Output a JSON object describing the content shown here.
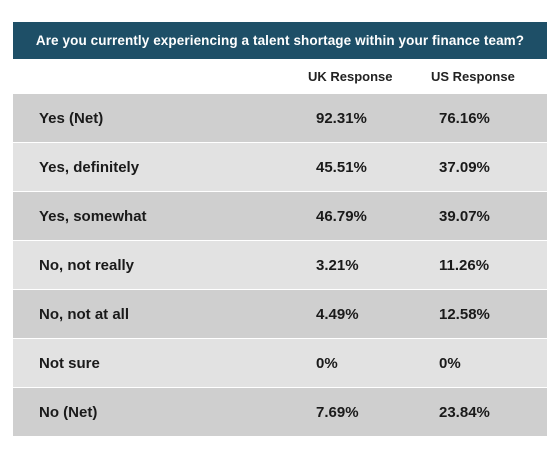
{
  "chart_data": {
    "type": "table",
    "title": "Are you currently experiencing a talent shortage within your finance team?",
    "columns": [
      "UK Response",
      "US Response"
    ],
    "rows": [
      {
        "label": "Yes (Net)",
        "uk": "92.31%",
        "us": "76.16%"
      },
      {
        "label": "Yes, definitely",
        "uk": "45.51%",
        "us": "37.09%"
      },
      {
        "label": "Yes, somewhat",
        "uk": "46.79%",
        "us": "39.07%"
      },
      {
        "label": "No, not really",
        "uk": "3.21%",
        "us": "11.26%"
      },
      {
        "label": "No, not at all",
        "uk": "4.49%",
        "us": "12.58%"
      },
      {
        "label": "Not sure",
        "uk": "0%",
        "us": "0%"
      },
      {
        "label": "No (Net)",
        "uk": "7.69%",
        "us": "23.84%"
      }
    ],
    "colors": {
      "header_background": "#1e4f67",
      "header_text": "#ffffff",
      "row_dark": "#cfcfcf",
      "row_light": "#e2e2e2"
    }
  }
}
